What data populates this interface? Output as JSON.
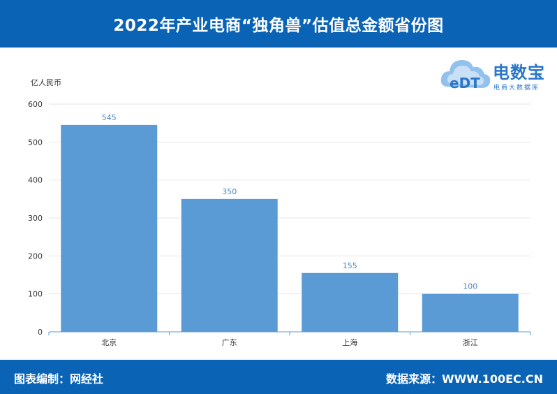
{
  "header": {
    "title": "2022年产业电商“独角兽”估值总金额省份图"
  },
  "logo": {
    "brand": "电数宝",
    "sub": "电商大数据库",
    "mark": "eDT",
    "icon": "cloud-icon"
  },
  "footer": {
    "left": "图表编制：网经社",
    "right": "数据来源：WWW.100EC.CN"
  },
  "colors": {
    "header_bg": "#0a63b5",
    "bar": "#5b9bd5",
    "label": "#4b86c6",
    "grid": "#e6e6e6"
  },
  "chart_data": {
    "type": "bar",
    "title": "2022年产业电商“独角兽”估值总金额省份图",
    "ylabel": "亿人民币",
    "xlabel": "",
    "categories": [
      "北京",
      "广东",
      "上海",
      "浙江"
    ],
    "values": [
      545,
      350,
      155,
      100
    ],
    "ylim": [
      0,
      600
    ],
    "yticks": [
      0,
      100,
      200,
      300,
      400,
      500,
      600
    ],
    "grid": true,
    "data_labels": true
  }
}
